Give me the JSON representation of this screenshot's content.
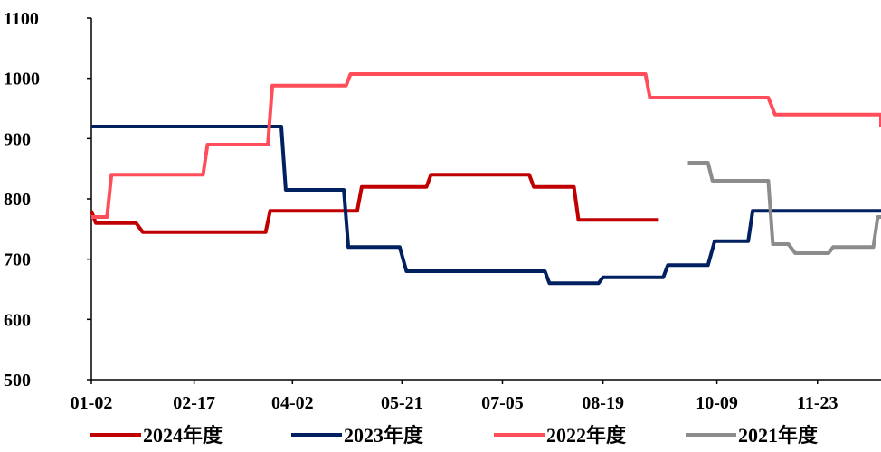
{
  "chart_data": {
    "type": "line",
    "x_tick_labels": [
      "01-02",
      "02-17",
      "04-02",
      "05-21",
      "07-05",
      "08-19",
      "10-09",
      "11-23"
    ],
    "y_ticks": [
      500,
      600,
      700,
      800,
      900,
      1000,
      1100
    ],
    "ylim": [
      500,
      1100
    ],
    "grid": false,
    "legend_position": "bottom",
    "series": [
      {
        "name": "2024年度",
        "color": "#c00000",
        "points": [
          [
            "01-02",
            780
          ],
          [
            "01-04",
            760
          ],
          [
            "01-22",
            760
          ],
          [
            "01-25",
            745
          ],
          [
            "03-21",
            745
          ],
          [
            "03-23",
            780
          ],
          [
            "05-01",
            780
          ],
          [
            "05-03",
            820
          ],
          [
            "06-01",
            820
          ],
          [
            "06-03",
            840
          ],
          [
            "07-17",
            840
          ],
          [
            "07-19",
            820
          ],
          [
            "08-06",
            820
          ],
          [
            "08-08",
            765
          ],
          [
            "09-13",
            765
          ]
        ]
      },
      {
        "name": "2023年度",
        "color": "#002060",
        "points": [
          [
            "01-02",
            920
          ],
          [
            "03-28",
            920
          ],
          [
            "03-30",
            815
          ],
          [
            "04-25",
            815
          ],
          [
            "04-27",
            720
          ],
          [
            "05-20",
            720
          ],
          [
            "05-23",
            680
          ],
          [
            "07-24",
            680
          ],
          [
            "07-26",
            660
          ],
          [
            "08-17",
            660
          ],
          [
            "08-19",
            670
          ],
          [
            "09-15",
            670
          ],
          [
            "09-17",
            690
          ],
          [
            "10-05",
            690
          ],
          [
            "10-08",
            730
          ],
          [
            "10-23",
            730
          ],
          [
            "10-25",
            780
          ],
          [
            "12-30",
            780
          ]
        ]
      },
      {
        "name": "2022年度",
        "color": "#ff4d5a",
        "points": [
          [
            "01-02",
            770
          ],
          [
            "01-09",
            770
          ],
          [
            "01-11",
            840
          ],
          [
            "02-21",
            840
          ],
          [
            "02-23",
            890
          ],
          [
            "03-22",
            890
          ],
          [
            "03-24",
            988
          ],
          [
            "04-26",
            988
          ],
          [
            "04-28",
            1007
          ],
          [
            "09-07",
            1007
          ],
          [
            "09-09",
            968
          ],
          [
            "11-01",
            968
          ],
          [
            "11-04",
            940
          ],
          [
            "12-27",
            940
          ],
          [
            "12-30",
            920
          ],
          [
            "12-31",
            920
          ]
        ]
      },
      {
        "name": "2021年度",
        "color": "#8c8c8c",
        "points": [
          [
            "09-26",
            860
          ],
          [
            "10-05",
            860
          ],
          [
            "10-07",
            830
          ],
          [
            "11-01",
            830
          ],
          [
            "11-03",
            725
          ],
          [
            "11-10",
            725
          ],
          [
            "11-13",
            710
          ],
          [
            "11-28",
            710
          ],
          [
            "11-30",
            720
          ],
          [
            "12-18",
            720
          ],
          [
            "12-20",
            770
          ],
          [
            "12-31",
            770
          ]
        ]
      }
    ]
  }
}
